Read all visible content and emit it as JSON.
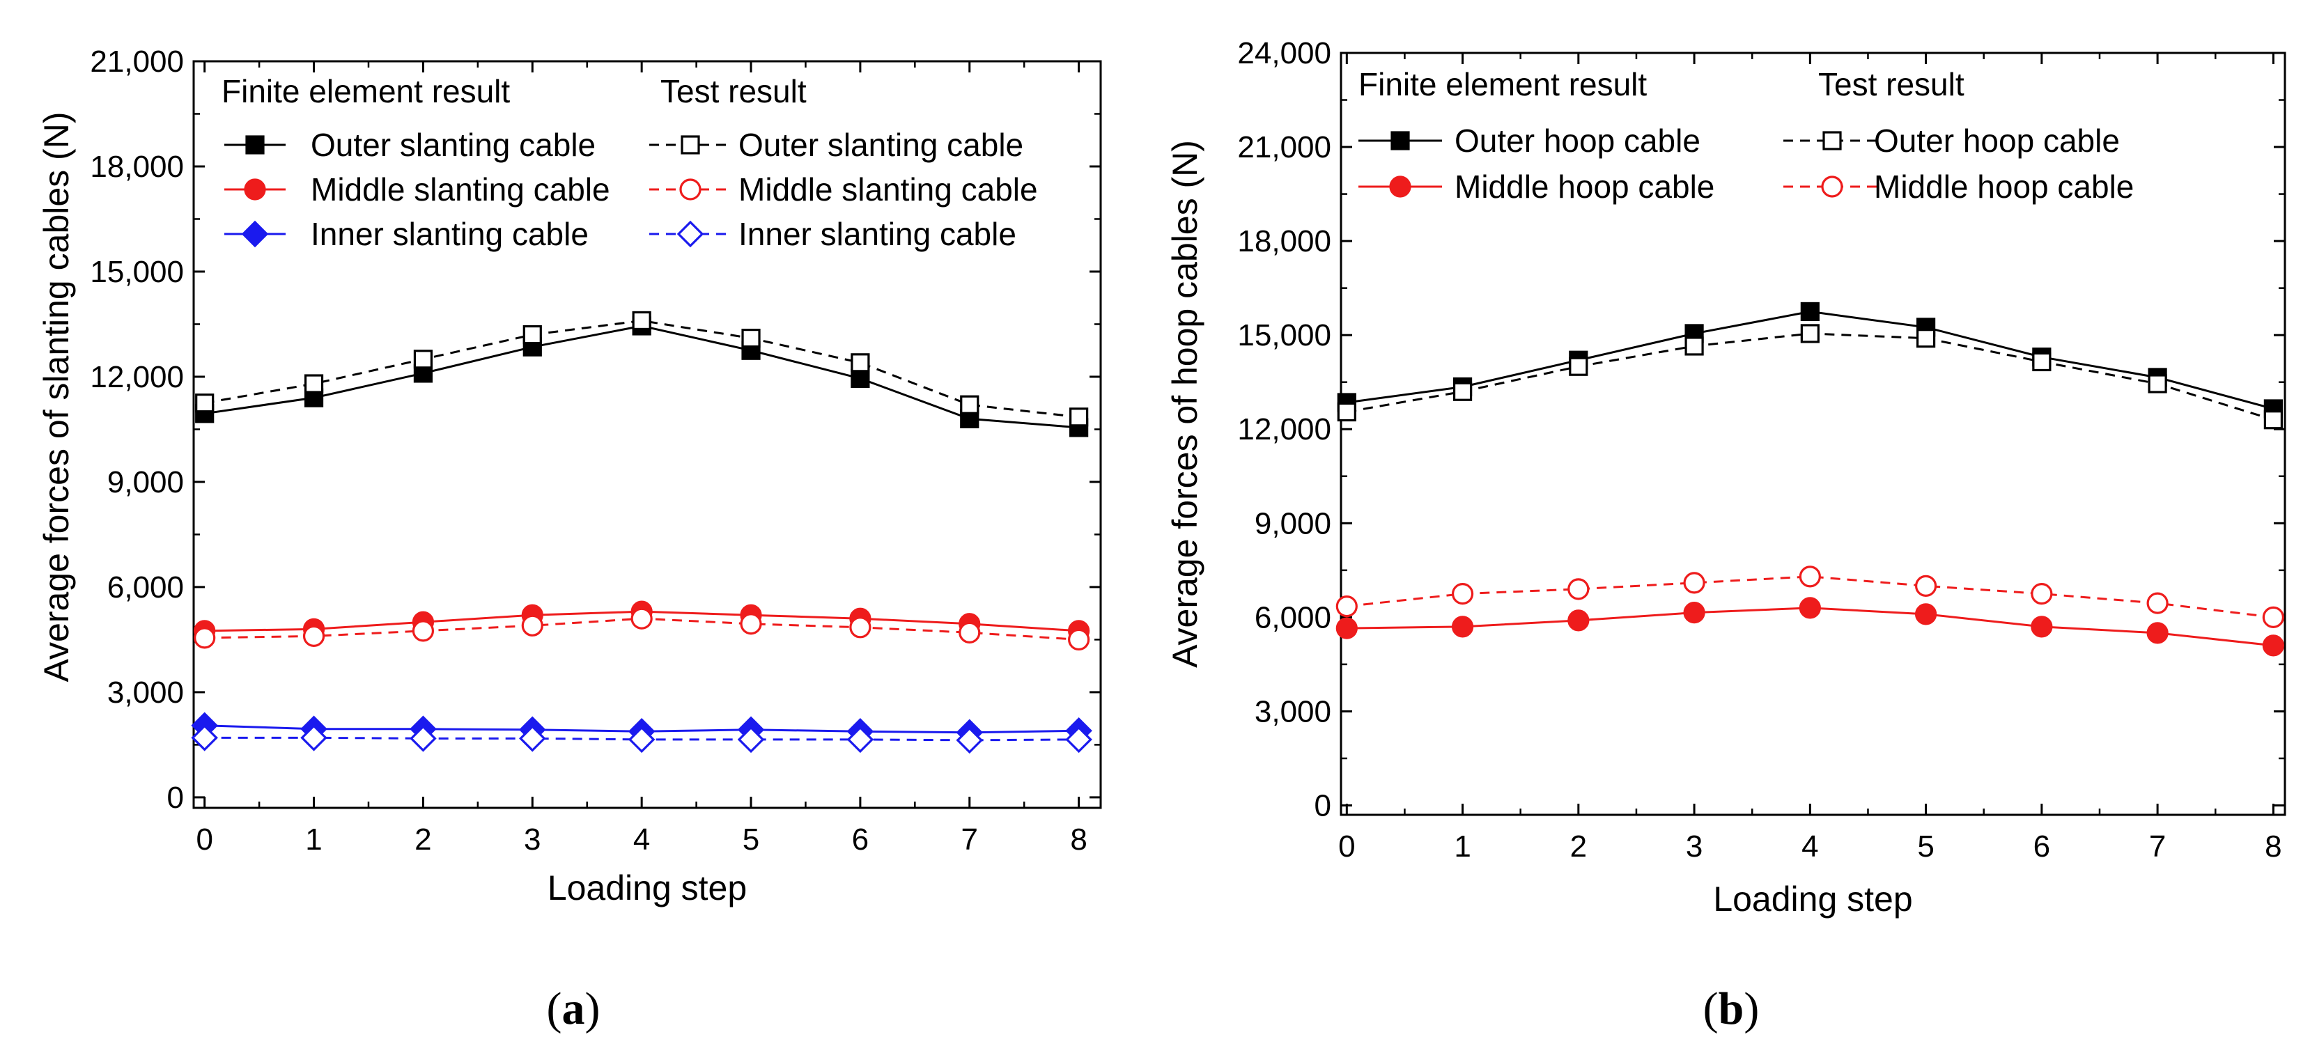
{
  "colors": {
    "black": "#000000",
    "red": "#ee1c1c",
    "blue": "#1a1aee"
  },
  "chart_data": [
    {
      "type": "line",
      "panel_label": "a",
      "xlabel": "Loading step",
      "ylabel": "Average forces of slanting cables (N)",
      "x": [
        0,
        1,
        2,
        3,
        4,
        5,
        6,
        7,
        8
      ],
      "xlim": [
        -0.1,
        8.2
      ],
      "ylim": [
        -300,
        21000
      ],
      "yticks": [
        0,
        3000,
        6000,
        9000,
        12000,
        15000,
        18000,
        21000
      ],
      "ytick_labels": [
        "0",
        "3,000",
        "6,000",
        "9,000",
        "12,000",
        "15,000",
        "18,000",
        "21,000"
      ],
      "xtick_labels": [
        "0",
        "1",
        "2",
        "3",
        "4",
        "5",
        "6",
        "7",
        "8"
      ],
      "legend_headers": {
        "fe": "Finite element result",
        "test": "Test result"
      },
      "series": [
        {
          "name": "Outer slanting cable",
          "group": "fe",
          "color": "#000000",
          "marker": "square",
          "filled": true,
          "dashed": false,
          "values": [
            10950,
            11400,
            12100,
            12850,
            13450,
            12750,
            11950,
            10800,
            10550
          ]
        },
        {
          "name": "Middle slanting cable",
          "group": "fe",
          "color": "#ee1c1c",
          "marker": "circle",
          "filled": true,
          "dashed": false,
          "values": [
            4750,
            4800,
            5000,
            5200,
            5300,
            5200,
            5100,
            4950,
            4750
          ]
        },
        {
          "name": "Inner slanting cable",
          "group": "fe",
          "color": "#1a1aee",
          "marker": "diamond",
          "filled": true,
          "dashed": false,
          "values": [
            2050,
            1950,
            1950,
            1930,
            1880,
            1930,
            1880,
            1850,
            1900
          ]
        },
        {
          "name": "Outer slanting cable",
          "group": "test",
          "color": "#000000",
          "marker": "square",
          "filled": false,
          "dashed": true,
          "values": [
            11250,
            11800,
            12500,
            13200,
            13600,
            13100,
            12400,
            11200,
            10850
          ]
        },
        {
          "name": "Middle slanting cable",
          "group": "test",
          "color": "#ee1c1c",
          "marker": "circle",
          "filled": false,
          "dashed": true,
          "values": [
            4550,
            4600,
            4750,
            4900,
            5100,
            4950,
            4850,
            4700,
            4500
          ]
        },
        {
          "name": "Inner slanting cable",
          "group": "test",
          "color": "#1a1aee",
          "marker": "diamond",
          "filled": false,
          "dashed": true,
          "values": [
            1700,
            1700,
            1680,
            1680,
            1650,
            1650,
            1650,
            1630,
            1650
          ]
        }
      ]
    },
    {
      "type": "line",
      "panel_label": "b",
      "xlabel": "Loading step",
      "ylabel": "Average forces of hoop cables (N)",
      "x": [
        0,
        1,
        2,
        3,
        4,
        5,
        6,
        7,
        8
      ],
      "xlim": [
        -0.05,
        8.1
      ],
      "ylim": [
        -300,
        24000
      ],
      "yticks": [
        0,
        3000,
        6000,
        9000,
        12000,
        15000,
        18000,
        21000,
        24000
      ],
      "ytick_labels": [
        "0",
        "3,000",
        "6,000",
        "9,000",
        "12,000",
        "15,000",
        "18,000",
        "21,000",
        "24,000"
      ],
      "xtick_labels": [
        "0",
        "1",
        "2",
        "3",
        "4",
        "5",
        "6",
        "7",
        "8"
      ],
      "legend_headers": {
        "fe": "Finite element result",
        "test": "Test result"
      },
      "series": [
        {
          "name": "Outer hoop cable",
          "group": "fe",
          "color": "#000000",
          "marker": "square",
          "filled": true,
          "dashed": false,
          "values": [
            12850,
            13350,
            14200,
            15050,
            15750,
            15250,
            14300,
            13650,
            12650
          ]
        },
        {
          "name": "Middle hoop cable",
          "group": "fe",
          "color": "#ee1c1c",
          "marker": "circle",
          "filled": true,
          "dashed": false,
          "values": [
            5650,
            5700,
            5900,
            6150,
            6300,
            6100,
            5700,
            5500,
            5100
          ]
        },
        {
          "name": "Outer hoop cable",
          "group": "test",
          "color": "#000000",
          "marker": "square",
          "filled": false,
          "dashed": true,
          "values": [
            12550,
            13200,
            14000,
            14650,
            15050,
            14900,
            14150,
            13450,
            12300
          ]
        },
        {
          "name": "Middle hoop cable",
          "group": "test",
          "color": "#ee1c1c",
          "marker": "circle",
          "filled": false,
          "dashed": true,
          "values": [
            6350,
            6750,
            6900,
            7100,
            7300,
            7000,
            6750,
            6450,
            6000
          ]
        }
      ]
    }
  ]
}
